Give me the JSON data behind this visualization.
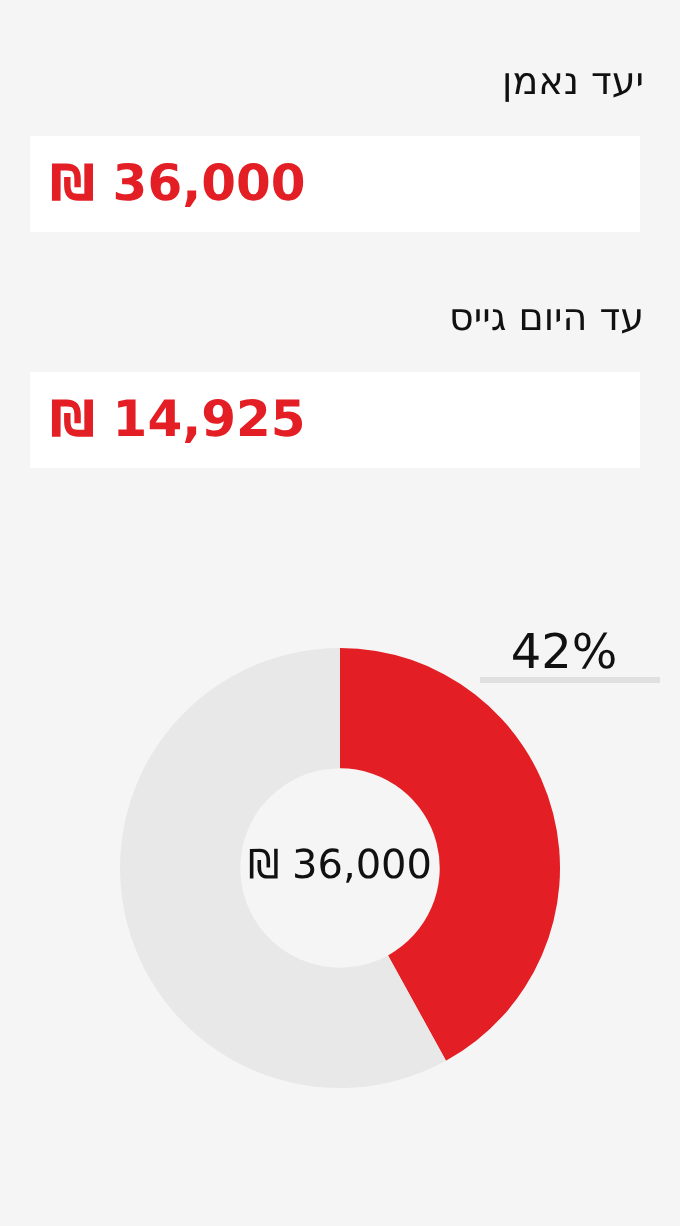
{
  "chart_data": [
    {
      "type": "other",
      "annotations": [
        "יעד נאמן",
        "₪ 36,000",
        "עד היום גייס",
        "₪ 14,925"
      ]
    },
    {
      "type": "donut",
      "categories": [
        null,
        null
      ],
      "values": [
        42,
        58
      ],
      "colors": [
        "#e31e24",
        "#e8e8e8"
      ],
      "value_labels": [
        "42%",
        null
      ],
      "annotations": [
        "₪ 36,000"
      ]
    }
  ]
}
